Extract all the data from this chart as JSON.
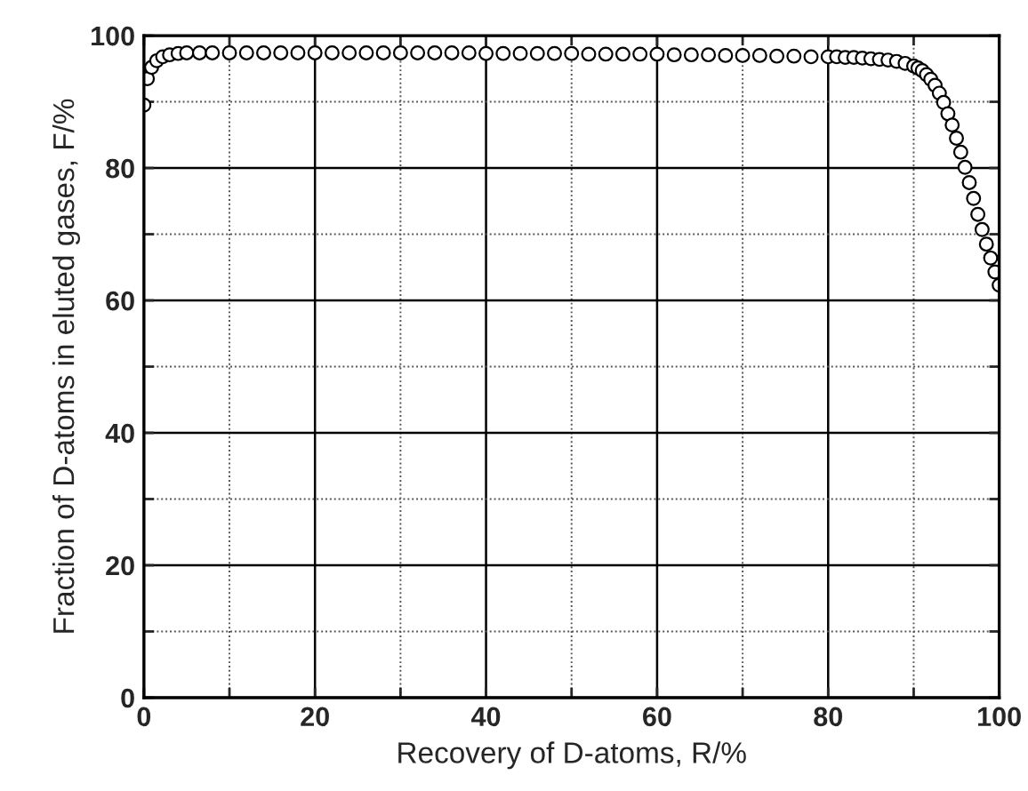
{
  "chart_data": {
    "type": "scatter",
    "xlabel": "Recovery of D-atoms, R/%",
    "ylabel": "Fraction of D-atoms in eluted gases, F/%",
    "xlim": [
      0,
      100
    ],
    "ylim": [
      0,
      100
    ],
    "xticks": [
      0,
      {
        "value": 10,
        "label": null
      },
      20,
      {
        "value": 30,
        "label": null
      },
      40,
      {
        "value": 50,
        "label": null
      },
      60,
      {
        "value": 70,
        "label": null
      },
      80,
      {
        "value": 90,
        "label": null
      },
      100
    ],
    "yticks": [
      0,
      {
        "value": 10,
        "label": null
      },
      20,
      {
        "value": 30,
        "label": null
      },
      40,
      {
        "value": 50,
        "label": null
      },
      60,
      {
        "value": 70,
        "label": null
      },
      80,
      {
        "value": 90,
        "label": null
      },
      100
    ],
    "grid": true,
    "marker": "circle",
    "series": [
      {
        "color": "#000000",
        "x": [
          0,
          0.4,
          0.9,
          1.5,
          2.2,
          3,
          4,
          5,
          6.5,
          8,
          10,
          12,
          14,
          16,
          18,
          20,
          22,
          24,
          26,
          28,
          30,
          32,
          34,
          36,
          38,
          40,
          42,
          44,
          46,
          48,
          50,
          52,
          54,
          56,
          58,
          60,
          62,
          64,
          66,
          68,
          70,
          72,
          74,
          76,
          78,
          80,
          81,
          82,
          83,
          84,
          85,
          86,
          87,
          88,
          89,
          90,
          90.5,
          91,
          91.5,
          92,
          92.5,
          93,
          93.5,
          94,
          94.5,
          95,
          95.5,
          96,
          96.5,
          97,
          97.5,
          98,
          98.5,
          99,
          99.5,
          100
        ],
        "values": [
          89.5,
          93.5,
          95.2,
          96.2,
          96.8,
          97.1,
          97.3,
          97.4,
          97.4,
          97.4,
          97.4,
          97.4,
          97.4,
          97.4,
          97.4,
          97.4,
          97.4,
          97.4,
          97.4,
          97.4,
          97.4,
          97.4,
          97.4,
          97.4,
          97.4,
          97.3,
          97.3,
          97.3,
          97.3,
          97.3,
          97.3,
          97.2,
          97.2,
          97.2,
          97.2,
          97.2,
          97.1,
          97.1,
          97.1,
          97.0,
          97.0,
          97.0,
          96.9,
          96.9,
          96.8,
          96.8,
          96.8,
          96.7,
          96.7,
          96.6,
          96.5,
          96.4,
          96.3,
          96.1,
          95.8,
          95.4,
          95.1,
          94.7,
          94.1,
          93.4,
          92.5,
          91.3,
          89.9,
          88.2,
          86.5,
          84.5,
          82.4,
          80.1,
          77.8,
          75.4,
          73.0,
          70.7,
          68.5,
          66.4,
          64.3,
          62.3
        ]
      }
    ]
  }
}
